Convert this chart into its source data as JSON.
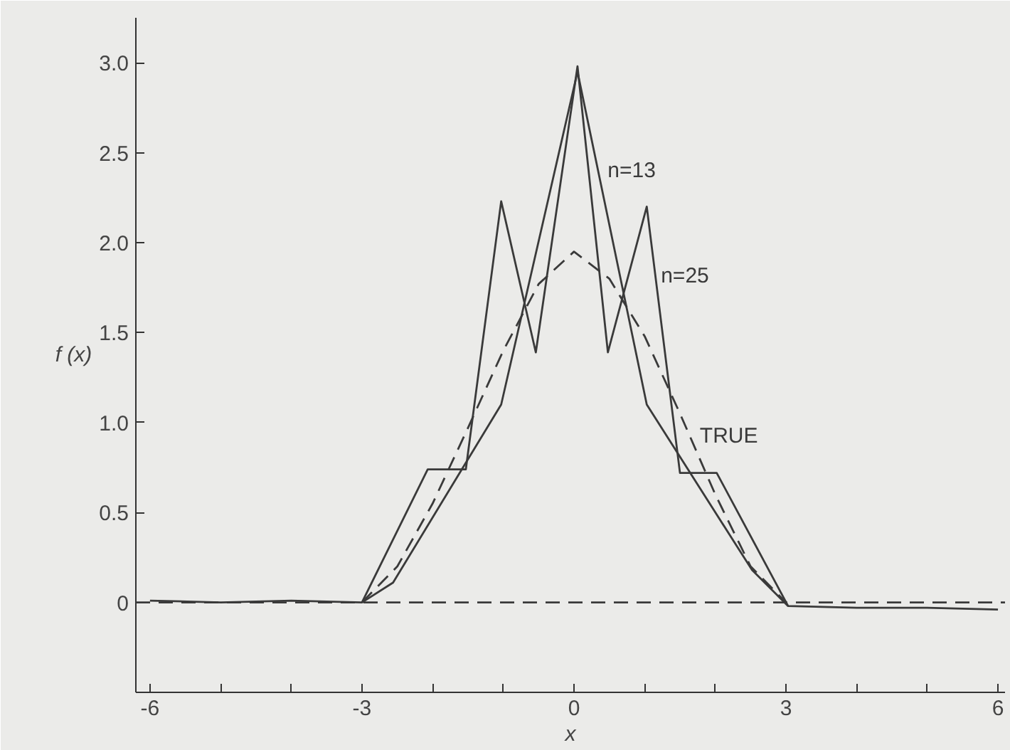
{
  "chart_data": {
    "type": "line",
    "xlabel": "x",
    "ylabel": "f (x)",
    "xlim": [
      -6.2,
      6.1
    ],
    "ylim": [
      -0.5,
      3.25
    ],
    "xticks": [
      -6,
      {
        "value": -5,
        "label": null
      },
      {
        "value": -4,
        "label": null
      },
      -3,
      {
        "value": -2,
        "label": null
      },
      {
        "value": -1,
        "label": null
      },
      0,
      {
        "value": 1,
        "label": null
      },
      {
        "value": 2,
        "label": null
      },
      3,
      {
        "value": 4,
        "label": null
      },
      {
        "value": 5,
        "label": null
      },
      6
    ],
    "yticks": [
      0,
      0.5,
      {
        "value": 1.0,
        "label": "1.0"
      },
      1.5,
      {
        "value": 2.0,
        "label": "2.0"
      },
      2.5,
      {
        "value": 3.0,
        "label": "3.0"
      }
    ],
    "grid": false,
    "ref_lines": [
      {
        "axis": "y",
        "value": 0,
        "label": null,
        "color": "#3a3a3a",
        "line_style": "dashed"
      }
    ],
    "series": [
      {
        "name": "n=13",
        "color": "#3a3a3a",
        "line_style": "solid",
        "x": [
          -3,
          -2.56,
          -1.03,
          0.05,
          1.03,
          2.52,
          3.03
        ],
        "values": [
          0,
          0.11,
          1.1,
          2.95,
          1.1,
          0.18,
          -0.02
        ]
      },
      {
        "name": "n=25",
        "color": "#3a3a3a",
        "line_style": "solid",
        "x": [
          -6,
          -5,
          -4,
          -3,
          -2.07,
          -1.53,
          -1.03,
          -0.54,
          0.05,
          0.48,
          1.03,
          1.5,
          2.02,
          3.03,
          4,
          5,
          6
        ],
        "values": [
          0.01,
          0,
          0.01,
          0,
          0.74,
          0.74,
          2.23,
          1.39,
          2.98,
          1.39,
          2.2,
          0.72,
          0.72,
          -0.02,
          -0.03,
          -0.03,
          -0.04
        ]
      },
      {
        "name": "TRUE",
        "color": "#3a3a3a",
        "line_style": "dashed",
        "x": [
          -3,
          -2.5,
          -2,
          -1.5,
          -1,
          -0.5,
          0,
          0.5,
          1,
          1.5,
          2,
          2.5,
          3
        ],
        "values": [
          0,
          0.2,
          0.55,
          0.97,
          1.4,
          1.77,
          1.95,
          1.8,
          1.48,
          1.05,
          0.6,
          0.2,
          0
        ]
      }
    ]
  }
}
